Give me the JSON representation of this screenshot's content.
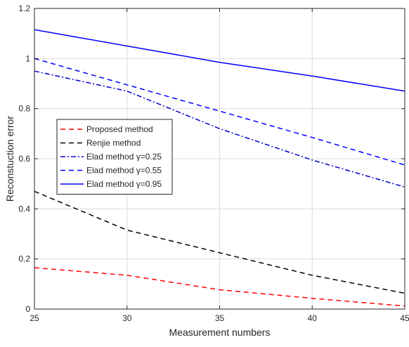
{
  "chart_data": {
    "type": "line",
    "title": "",
    "xlabel": "Measurement numbers",
    "ylabel": "Reconstuction error",
    "x": [
      25,
      30,
      35,
      40,
      45
    ],
    "xlim": [
      25,
      45
    ],
    "ylim": [
      0,
      1.2
    ],
    "xticks": [
      25,
      30,
      35,
      40,
      45
    ],
    "yticks": [
      0,
      0.2,
      0.4,
      0.6,
      0.8,
      1,
      1.2
    ],
    "xtick_labels": [
      "25",
      "30",
      "35",
      "40",
      "45"
    ],
    "ytick_labels": [
      "0",
      "0.2",
      "0.4",
      "0.6",
      "0.8",
      "1",
      "1.2"
    ],
    "grid": true,
    "legend_position": "left-middle",
    "series": [
      {
        "name": "Proposed method",
        "color": "#ff0000",
        "style": "dashed",
        "values": [
          0.165,
          0.135,
          0.077,
          0.043,
          0.012
        ]
      },
      {
        "name": "Renjie method",
        "color": "#000000",
        "style": "dashed",
        "values": [
          0.47,
          0.315,
          0.225,
          0.135,
          0.063
        ]
      },
      {
        "name": "Elad method γ=0.25",
        "color": "#0000cc",
        "style": "dashdot",
        "values": [
          0.95,
          0.87,
          0.72,
          0.595,
          0.487
        ]
      },
      {
        "name": "Elad method γ=0.55",
        "color": "#0000ff",
        "style": "dashed",
        "values": [
          1.0,
          0.895,
          0.79,
          0.685,
          0.575
        ]
      },
      {
        "name": "Elad method γ=0.95",
        "color": "#0000ff",
        "style": "solid",
        "values": [
          1.115,
          1.05,
          0.985,
          0.93,
          0.87
        ]
      }
    ]
  }
}
